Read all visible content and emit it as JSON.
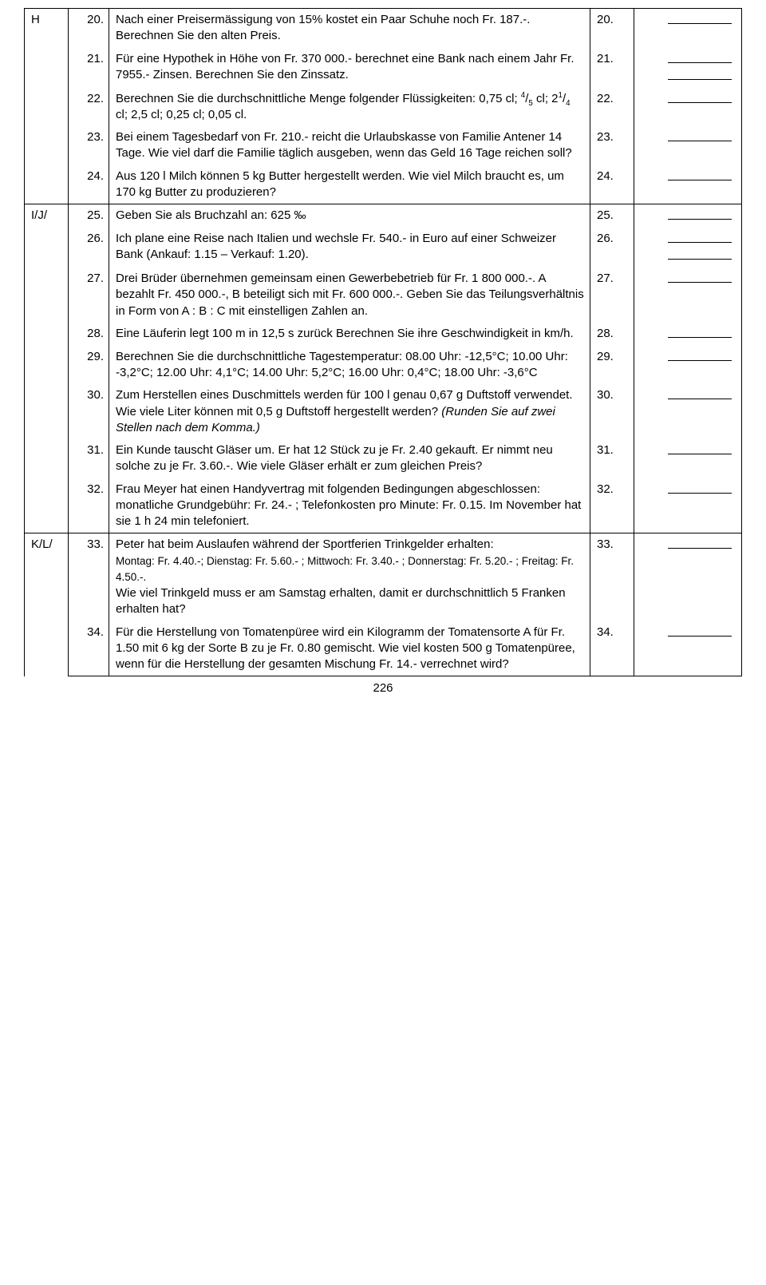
{
  "page_number": "226",
  "sections": {
    "H": "H",
    "IJ": "I/J/",
    "KL": "K/L/"
  },
  "rows": [
    {
      "n": "20.",
      "q": "Nach einer Preisermässigung von 15% kostet ein Paar Schuhe noch Fr. 187.-. Berechnen Sie den alten Preis.",
      "an": "20.",
      "blanks": 1
    },
    {
      "n": "21.",
      "q": "Für eine Hypothek in Höhe von Fr. 370 000.- berechnet eine Bank nach einem Jahr Fr. 7955.- Zinsen. Berechnen Sie den Zinssatz.",
      "an": "21.",
      "blanks": 2
    },
    {
      "n": "22.",
      "q_html": "Berechnen Sie die durchschnittliche Menge folgender Flüssigkeiten: 0,75 cl; <sup>4</sup>/<sub>5</sub> cl; 2<sup>1</sup>/<sub>4</sub> cl; 2,5 cl; 0,25 cl; 0,05 cl.",
      "an": "22.",
      "blanks": 1
    },
    {
      "n": "23.",
      "q": "Bei einem Tagesbedarf von Fr. 210.- reicht die Urlaubskasse von Familie Antener 14 Tage. Wie viel darf die Familie täglich ausgeben, wenn das Geld 16 Tage reichen soll?",
      "an": "23.",
      "blanks": 1
    },
    {
      "n": "24.",
      "q": "Aus 120 l Milch können 5 kg Butter hergestellt werden. Wie viel Milch braucht es, um 170 kg Butter zu produzieren?",
      "an": "24.",
      "blanks": 1
    },
    {
      "n": "25.",
      "q": "Geben Sie als Bruchzahl an: 625 ‰",
      "an": "25.",
      "blanks": 1
    },
    {
      "n": "26.",
      "q": "Ich plane eine Reise nach Italien und wechsle Fr. 540.- in Euro auf einer Schweizer Bank (Ankauf: 1.15 – Verkauf: 1.20).",
      "an": "26.",
      "blanks": 2
    },
    {
      "n": "27.",
      "q": "Drei Brüder übernehmen gemeinsam einen Gewerbebetrieb für Fr. 1 800 000.-. A bezahlt Fr. 450 000.-, B beteiligt sich mit Fr. 600 000.-. Geben Sie das Teilungsverhältnis in Form von A : B : C mit einstelligen Zahlen an.",
      "an": "27.",
      "blanks": 1
    },
    {
      "n": "28.",
      "q": "Eine Läuferin legt 100 m in 12,5 s zurück Berechnen Sie ihre Geschwindigkeit in km/h.",
      "an": "28.",
      "blanks": 1
    },
    {
      "n": "29.",
      "q_html": "Berechnen Sie die durchschnittliche Tagestemperatur: 08.00 Uhr: -12,5°C; 10.00 Uhr: -3,2°C; 12.00 Uhr: 4,1°C; 14.00 Uhr: 5,2°C; 16.00 Uhr: 0,4°C; 18.00 Uhr: -3,6°C",
      "an": "29.",
      "blanks": 1
    },
    {
      "n": "30.",
      "q_html": "Zum Herstellen eines Duschmittels werden für 100 l genau 0,67 g Duftstoff verwendet. Wie viele Liter können mit 0,5 g Duftstoff hergestellt werden? <span class=\"italic\">(Runden Sie auf zwei Stellen nach dem Komma.)</span>",
      "an": "30.",
      "blanks": 1
    },
    {
      "n": "31.",
      "q": "Ein Kunde tauscht Gläser um. Er hat 12 Stück zu je Fr. 2.40 gekauft. Er nimmt neu solche zu je Fr. 3.60.-. Wie viele Gläser erhält er zum gleichen Preis?",
      "an": "31.",
      "blanks": 1
    },
    {
      "n": "32.",
      "q": "Frau Meyer hat einen Handyvertrag mit folgenden Bedingungen abgeschlossen: monatliche Grundgebühr: Fr. 24.- ; Telefonkosten pro Minute: Fr. 0.15. Im November hat sie 1 h 24 min telefoniert.",
      "an": "32.",
      "blanks": 1
    },
    {
      "n": "33.",
      "q_html": "Peter hat beim Auslaufen während der Sportferien Trinkgelder erhalten:<br><span style=\"font-size:13.5px;\">Montag: Fr. 4.40.-; Dienstag: Fr. 5.60.- ; Mittwoch: Fr. 3.40.- ; Donnerstag: Fr. 5.20.- ; Freitag: Fr. 4.50.-.</span><br>Wie viel Trinkgeld muss er am Samstag erhalten, damit er durchschnittlich 5 Franken erhalten hat?",
      "an": "33.",
      "blanks": 1
    },
    {
      "n": "34.",
      "q": "Für die Herstellung von Tomatenpüree wird ein Kilogramm der Tomatensorte A für Fr. 1.50 mit 6 kg der Sorte B zu je Fr. 0.80 gemischt. Wie viel kosten 500 g Tomatenpüree, wenn für die Herstellung der gesamten Mischung Fr. 14.- verrechnet wird?",
      "an": "34.",
      "blanks": 1
    }
  ]
}
